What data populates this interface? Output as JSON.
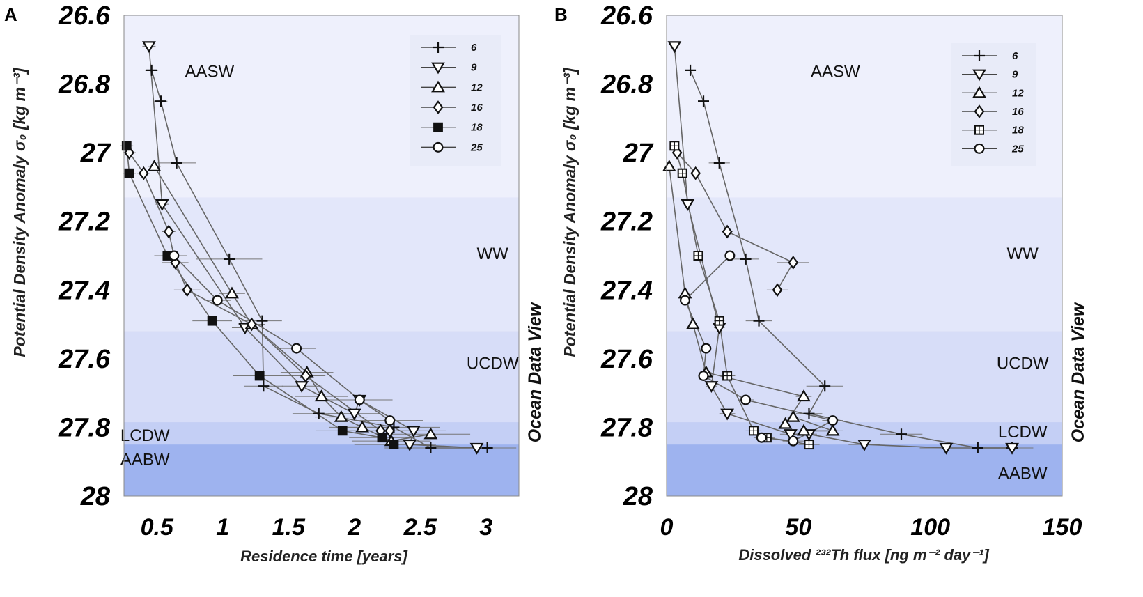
{
  "colors": {
    "AASW": "#eef0fc",
    "WW": "#e3e7fa",
    "UCDW": "#d7ddf8",
    "LCDW": "#c4cff5",
    "AABW": "#9eb3ef",
    "line": "#666666",
    "errorbar": "#777777",
    "legend_bg": "#e8ebf8"
  },
  "chart_data": [
    {
      "panel": "A",
      "type": "scatter",
      "xlabel": "Residence time [years]",
      "ylabel": "Potential Density Anomaly σ₀ [kg m⁻³]",
      "xlim": [
        0.25,
        3.25
      ],
      "ylim": [
        28.0,
        26.6
      ],
      "xticks": [
        "0.5",
        "1",
        "1.5",
        "2",
        "2.5",
        "3"
      ],
      "xtick_values": [
        0.5,
        1,
        1.5,
        2,
        2.5,
        3
      ],
      "yticks": [
        "26.6",
        "26.8",
        "27",
        "27.2",
        "27.4",
        "27.6",
        "27.8",
        "28"
      ],
      "ytick_values": [
        26.6,
        26.8,
        27.0,
        27.2,
        27.4,
        27.6,
        27.8,
        28.0
      ],
      "watermark": "Ocean Data View",
      "water_masses": [
        {
          "name": "AASW",
          "label": "AASW",
          "top": 26.6,
          "bottom": 27.13,
          "label_x": 0.9,
          "label_y": 26.78
        },
        {
          "name": "WW",
          "label": "WW",
          "top": 27.13,
          "bottom": 27.52,
          "label_x": 3.05,
          "label_y": 27.31
        },
        {
          "name": "UCDW",
          "label": "UCDW",
          "top": 27.52,
          "bottom": 27.785,
          "label_x": 3.05,
          "label_y": 27.63
        },
        {
          "name": "LCDW",
          "label": "LCDW",
          "top": 27.785,
          "bottom": 27.85,
          "label_x": 0.41,
          "label_y": 27.84
        },
        {
          "name": "AABW",
          "label": "AABW",
          "top": 27.85,
          "bottom": 28.0,
          "label_x": 0.41,
          "label_y": 27.91
        }
      ],
      "legend": [
        "6",
        "9",
        "12",
        "16",
        "18",
        "25"
      ],
      "series": [
        {
          "name": "6",
          "marker": "plus",
          "points": [
            [
              0.46,
              26.76,
              0.05
            ],
            [
              0.53,
              26.85,
              0.05
            ],
            [
              0.65,
              27.03,
              0.15
            ],
            [
              1.05,
              27.31,
              0.25
            ],
            [
              1.3,
              27.49,
              0.15
            ],
            [
              1.31,
              27.68,
              0.15
            ],
            [
              1.73,
              27.76,
              0.2
            ],
            [
              2.3,
              27.8,
              0.35
            ],
            [
              2.58,
              27.86,
              0.35
            ],
            [
              3.01,
              27.86,
              0.2
            ]
          ]
        },
        {
          "name": "9",
          "marker": "triangle-down",
          "points": [
            [
              0.44,
              26.69,
              0.05
            ],
            [
              0.54,
              27.15,
              0.05
            ],
            [
              1.17,
              27.51,
              0.1
            ],
            [
              1.6,
              27.68,
              0.15
            ],
            [
              2.0,
              27.76,
              0.2
            ],
            [
              2.04,
              27.72,
              0.25
            ],
            [
              2.45,
              27.81,
              0.25
            ],
            [
              2.42,
              27.85,
              0.2
            ],
            [
              2.93,
              27.86,
              0.3
            ]
          ]
        },
        {
          "name": "12",
          "marker": "triangle-up",
          "points": [
            [
              0.48,
              27.04,
              0.05
            ],
            [
              1.07,
              27.41,
              0.1
            ],
            [
              1.22,
              27.5,
              0.1
            ],
            [
              1.64,
              27.64,
              0.2
            ],
            [
              1.75,
              27.71,
              0.2
            ],
            [
              1.9,
              27.77,
              0.2
            ],
            [
              2.06,
              27.8,
              0.25
            ],
            [
              2.28,
              27.84,
              0.3
            ],
            [
              2.58,
              27.82,
              0.3
            ]
          ]
        },
        {
          "name": "16",
          "marker": "diamond",
          "points": [
            [
              0.29,
              27.0,
              0.05
            ],
            [
              0.4,
              27.06,
              0.05
            ],
            [
              0.59,
              27.23,
              0.05
            ],
            [
              0.64,
              27.32,
              0.1
            ],
            [
              0.73,
              27.4,
              0.1
            ],
            [
              1.22,
              27.5,
              0.1
            ],
            [
              1.63,
              27.65,
              0.15
            ],
            [
              2.2,
              27.81,
              0.3
            ],
            [
              2.27,
              27.81,
              0.3
            ]
          ]
        },
        {
          "name": "18",
          "marker": "square-filled",
          "points": [
            [
              0.27,
              26.98,
              0.05
            ],
            [
              0.29,
              27.06,
              0.05
            ],
            [
              0.58,
              27.3,
              0.1
            ],
            [
              0.92,
              27.49,
              0.15
            ],
            [
              1.28,
              27.65,
              0.2
            ],
            [
              1.91,
              27.81,
              0.2
            ],
            [
              2.21,
              27.83,
              0.25
            ],
            [
              2.3,
              27.85,
              0.3
            ]
          ]
        },
        {
          "name": "25",
          "marker": "circle",
          "points": [
            [
              0.63,
              27.3,
              0.1
            ],
            [
              0.96,
              27.43,
              0.1
            ],
            [
              1.56,
              27.57,
              0.15
            ],
            [
              2.04,
              27.72,
              0.2
            ],
            [
              2.27,
              27.78,
              0.25
            ]
          ]
        }
      ]
    },
    {
      "panel": "B",
      "type": "scatter",
      "xlabel": "Dissolved ²³²Th flux [ng m⁻² day⁻¹]",
      "ylabel": "Potential Density Anomaly σ₀ [kg m⁻³]",
      "xlim": [
        0,
        150
      ],
      "ylim": [
        28.0,
        26.6
      ],
      "xticks": [
        "0",
        "50",
        "100",
        "150"
      ],
      "xtick_values": [
        0,
        50,
        100,
        150
      ],
      "yticks": [
        "26.6",
        "26.8",
        "27",
        "27.2",
        "27.4",
        "27.6",
        "27.8",
        "28"
      ],
      "ytick_values": [
        26.6,
        26.8,
        27.0,
        27.2,
        27.4,
        27.6,
        27.8,
        28.0
      ],
      "watermark": "Ocean Data View",
      "water_masses": [
        {
          "name": "AASW",
          "label": "AASW",
          "top": 26.6,
          "bottom": 27.13,
          "label_x": 64,
          "label_y": 26.78
        },
        {
          "name": "WW",
          "label": "WW",
          "top": 27.13,
          "bottom": 27.52,
          "label_x": 135,
          "label_y": 27.31
        },
        {
          "name": "UCDW",
          "label": "UCDW",
          "top": 27.52,
          "bottom": 27.785,
          "label_x": 135,
          "label_y": 27.63
        },
        {
          "name": "LCDW",
          "label": "LCDW",
          "top": 27.785,
          "bottom": 27.85,
          "label_x": 135,
          "label_y": 27.83
        },
        {
          "name": "AABW",
          "label": "AABW",
          "top": 27.85,
          "bottom": 28.0,
          "label_x": 135,
          "label_y": 27.95
        }
      ],
      "legend": [
        "6",
        "9",
        "12",
        "16",
        "18",
        "25"
      ],
      "series": [
        {
          "name": "6",
          "marker": "plus",
          "points": [
            [
              9,
              26.76,
              1
            ],
            [
              14,
              26.85,
              2
            ],
            [
              20,
              27.03,
              4
            ],
            [
              30,
              27.31,
              5
            ],
            [
              35,
              27.49,
              5
            ],
            [
              60,
              27.68,
              7
            ],
            [
              54,
              27.76,
              5
            ],
            [
              89,
              27.82,
              8
            ],
            [
              118,
              27.86,
              10
            ],
            [
              131,
              27.86,
              8
            ]
          ]
        },
        {
          "name": "9",
          "marker": "triangle-down",
          "points": [
            [
              3,
              26.69,
              1
            ],
            [
              8,
              27.15,
              1
            ],
            [
              20,
              27.51,
              2
            ],
            [
              17,
              27.68,
              2
            ],
            [
              23,
              27.76,
              3
            ],
            [
              47,
              27.82,
              4
            ],
            [
              54,
              27.82,
              3
            ],
            [
              75,
              27.85,
              6
            ],
            [
              106,
              27.86,
              10
            ],
            [
              131,
              27.86,
              8
            ]
          ]
        },
        {
          "name": "12",
          "marker": "triangle-up",
          "points": [
            [
              1,
              27.04,
              1
            ],
            [
              7,
              27.41,
              1
            ],
            [
              10,
              27.5,
              1
            ],
            [
              15,
              27.64,
              2
            ],
            [
              52,
              27.71,
              3
            ],
            [
              45,
              27.79,
              3
            ],
            [
              48,
              27.77,
              3
            ],
            [
              63,
              27.81,
              4
            ],
            [
              52,
              27.81,
              4
            ]
          ]
        },
        {
          "name": "16",
          "marker": "diamond",
          "points": [
            [
              4,
              27.0,
              1
            ],
            [
              11,
              27.06,
              1
            ],
            [
              23,
              27.23,
              2
            ],
            [
              48,
              27.32,
              6
            ],
            [
              42,
              27.4,
              4
            ]
          ]
        },
        {
          "name": "18",
          "marker": "square",
          "points": [
            [
              3,
              26.98,
              1
            ],
            [
              6,
              27.06,
              1
            ],
            [
              12,
              27.3,
              1
            ],
            [
              20,
              27.49,
              2
            ],
            [
              23,
              27.65,
              3
            ],
            [
              33,
              27.81,
              3
            ],
            [
              38,
              27.83,
              3
            ],
            [
              54,
              27.85,
              4
            ]
          ]
        },
        {
          "name": "25",
          "marker": "circle",
          "points": [
            [
              24,
              27.3,
              2
            ],
            [
              7,
              27.43,
              1
            ],
            [
              15,
              27.57,
              2
            ],
            [
              14,
              27.65,
              2
            ],
            [
              30,
              27.72,
              3
            ],
            [
              63,
              27.78,
              4
            ],
            [
              48,
              27.84,
              4
            ],
            [
              36,
              27.83,
              3
            ]
          ]
        }
      ]
    }
  ]
}
